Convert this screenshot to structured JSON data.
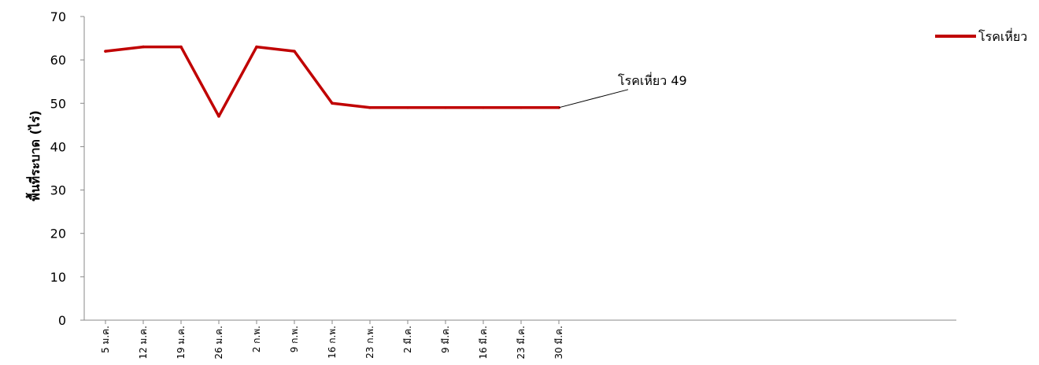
{
  "chart_data": {
    "type": "line",
    "title": "",
    "xlabel": "",
    "ylabel": "พื้นที่ระบาด (ไร่)",
    "categories": [
      "5 ม.ค.",
      "12 ม.ค.",
      "19 ม.ค.",
      "26 ม.ค.",
      "2 ก.พ.",
      "9 ก.พ.",
      "16 ก.พ.",
      "23 ก.พ.",
      "2 มี.ค.",
      "9 มี.ค.",
      "16 มี.ค.",
      "23 มี.ค.",
      "30 มี.ค."
    ],
    "series": [
      {
        "name": "โรคเหี่ยว",
        "values": [
          62,
          63,
          63,
          47,
          63,
          62,
          50,
          49,
          49,
          49,
          49,
          49,
          49
        ],
        "color": "#C00000"
      }
    ],
    "yticks": [
      "0",
      "10",
      "20",
      "30",
      "40",
      "50",
      "60",
      "70"
    ],
    "ylim": [
      0,
      70
    ],
    "grid": false,
    "legend_position": "top-right",
    "annotation": {
      "text": "โรคเหี่ยว 49",
      "category": "30 มี.ค.",
      "value": 49
    }
  }
}
